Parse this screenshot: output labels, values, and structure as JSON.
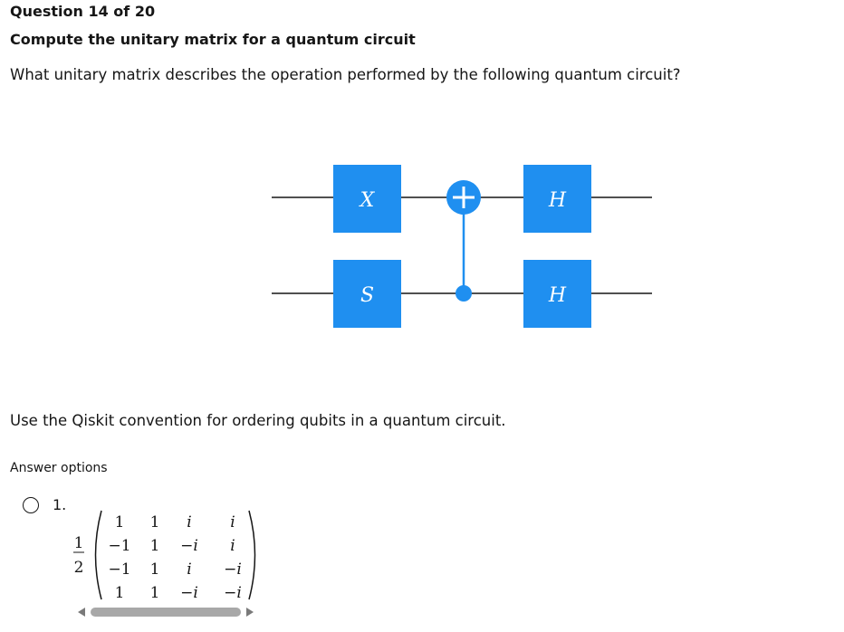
{
  "question": {
    "counter": "Question 14 of 20",
    "title": "Compute the unitary matrix for a quantum circuit",
    "prompt": "What unitary matrix describes the operation performed by the following quantum circuit?",
    "note": "Use the Qiskit convention for ordering qubits in a quantum circuit."
  },
  "circuit": {
    "gate_color": "#1f8ff0",
    "wire_color": "#161616",
    "gates": {
      "top_first": "X",
      "bottom_first": "S",
      "top_last": "H",
      "bottom_last": "H"
    },
    "cnot": {
      "target_symbol": "+"
    }
  },
  "answers": {
    "label": "Answer options",
    "options": [
      {
        "number": "1.",
        "prefactor_num": "1",
        "prefactor_den": "2",
        "matrix": [
          [
            "1",
            "1",
            "i",
            "i"
          ],
          [
            "−1",
            "1",
            "−i",
            "i"
          ],
          [
            "−1",
            "1",
            "i",
            "−i"
          ],
          [
            "1",
            "1",
            "−i",
            "−i"
          ]
        ]
      }
    ]
  }
}
